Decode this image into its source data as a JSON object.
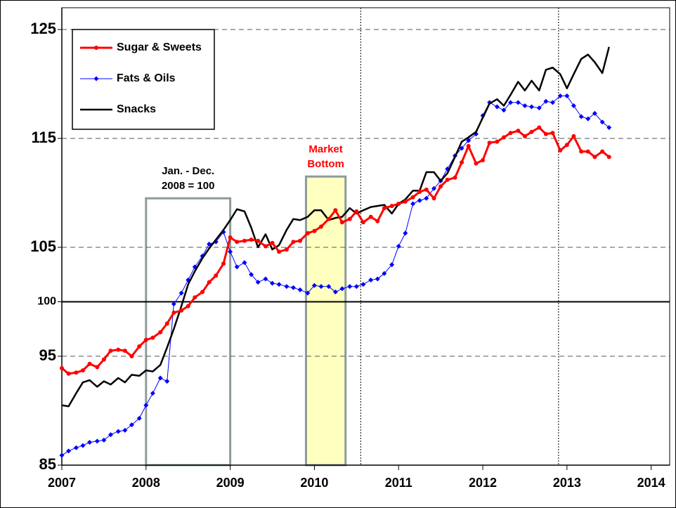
{
  "chart_data": {
    "type": "line",
    "x": [
      2007,
      2007.08,
      2007.17,
      2007.25,
      2007.33,
      2007.42,
      2007.5,
      2007.58,
      2007.67,
      2007.75,
      2007.83,
      2007.92,
      2008,
      2008.08,
      2008.17,
      2008.25,
      2008.33,
      2008.42,
      2008.5,
      2008.58,
      2008.67,
      2008.75,
      2008.83,
      2008.92,
      2009,
      2009.08,
      2009.17,
      2009.25,
      2009.33,
      2009.42,
      2009.5,
      2009.58,
      2009.67,
      2009.75,
      2009.83,
      2009.92,
      2010,
      2010.08,
      2010.17,
      2010.25,
      2010.33,
      2010.42,
      2010.5,
      2010.58,
      2010.67,
      2010.75,
      2010.83,
      2010.92,
      2011,
      2011.08,
      2011.17,
      2011.25,
      2011.33,
      2011.42,
      2011.5,
      2011.58,
      2011.67,
      2011.75,
      2011.83,
      2011.92,
      2012,
      2012.08,
      2012.17,
      2012.25,
      2012.33,
      2012.42,
      2012.5,
      2012.58,
      2012.67,
      2012.75,
      2012.83,
      2012.92,
      2013,
      2013.08,
      2013.17,
      2013.25,
      2013.33,
      2013.42,
      2013.5
    ],
    "series": [
      {
        "name": "Sugar & Sweets",
        "color": "#ff0000",
        "marker": "circle",
        "values": [
          93.9,
          93.4,
          93.5,
          93.7,
          94.3,
          94.0,
          94.7,
          95.5,
          95.6,
          95.5,
          95.0,
          95.9,
          96.5,
          96.7,
          97.2,
          98.0,
          99.0,
          99.2,
          99.6,
          100.4,
          100.9,
          101.8,
          102.4,
          103.5,
          105.9,
          105.5,
          105.6,
          105.7,
          105.6,
          105.1,
          105.4,
          104.6,
          104.8,
          105.5,
          105.6,
          106.3,
          106.5,
          106.9,
          107.6,
          108.4,
          107.3,
          107.6,
          108.3,
          107.3,
          107.8,
          107.4,
          108.6,
          108.8,
          109.0,
          109.2,
          109.6,
          110.1,
          110.3,
          109.5,
          110.6,
          111.2,
          111.4,
          112.8,
          114.3,
          112.7,
          113.0,
          114.6,
          114.7,
          115.1,
          115.5,
          115.7,
          115.2,
          115.6,
          116.0,
          115.4,
          115.5,
          113.9,
          114.4,
          115.2,
          113.8,
          113.8,
          113.3,
          113.8,
          113.3
        ]
      },
      {
        "name": "Fats & Oils",
        "color": "#0000ff",
        "marker": "diamond",
        "values": [
          85.9,
          86.3,
          86.6,
          86.8,
          87.1,
          87.2,
          87.3,
          87.8,
          88.1,
          88.2,
          88.7,
          89.3,
          90.5,
          91.6,
          93.0,
          92.7,
          99.8,
          100.8,
          102.0,
          103.2,
          104.2,
          105.3,
          105.5,
          106.4,
          104.6,
          103.2,
          103.6,
          102.5,
          101.8,
          102.1,
          101.7,
          101.6,
          101.4,
          101.3,
          101.1,
          100.8,
          101.5,
          101.4,
          101.4,
          100.9,
          101.2,
          101.4,
          101.4,
          101.6,
          102.0,
          102.1,
          102.6,
          103.4,
          105.1,
          106.3,
          109.0,
          109.3,
          109.5,
          110.4,
          111.1,
          112.2,
          113.4,
          114.1,
          114.8,
          115.4,
          117.1,
          118.3,
          117.9,
          117.6,
          118.3,
          118.3,
          118.0,
          117.9,
          117.8,
          118.4,
          118.3,
          118.9,
          118.9,
          118.0,
          117.0,
          116.8,
          117.3,
          116.5,
          116.0
        ]
      },
      {
        "name": "Snacks",
        "color": "#000000",
        "marker": "none",
        "values": [
          90.5,
          90.4,
          91.6,
          92.6,
          92.8,
          92.2,
          92.7,
          92.4,
          93.0,
          92.6,
          93.3,
          93.2,
          93.7,
          93.6,
          94.2,
          95.8,
          97.5,
          99.6,
          101.6,
          102.8,
          104.0,
          104.9,
          105.7,
          106.6,
          107.5,
          108.5,
          108.3,
          106.8,
          105.0,
          106.2,
          104.8,
          105.2,
          106.6,
          107.6,
          107.5,
          107.8,
          108.4,
          108.4,
          107.5,
          107.7,
          107.8,
          108.6,
          108.1,
          108.4,
          108.7,
          108.8,
          108.9,
          108.1,
          109.0,
          109.4,
          110.2,
          110.2,
          111.9,
          111.9,
          111.1,
          111.8,
          113.3,
          114.7,
          115.1,
          115.6,
          116.9,
          118.2,
          118.6,
          118.0,
          119.0,
          120.2,
          119.4,
          120.3,
          119.4,
          121.3,
          121.5,
          120.9,
          119.6,
          120.9,
          122.3,
          122.7,
          122.0,
          121.0,
          123.4
        ]
      }
    ],
    "xlim": [
      2007,
      2014.22
    ],
    "xticks": [
      2007,
      2008,
      2009,
      2010,
      2011,
      2012,
      2013,
      2014
    ],
    "ylim": [
      85,
      127
    ],
    "yticks": [
      85,
      95,
      100,
      105,
      115,
      125
    ],
    "grid": true,
    "reference_line": 100,
    "legend": "upper left",
    "vlines": [
      2010.55,
      2012.9
    ],
    "annotations": [
      {
        "lines": [
          "Jan. - Dec.",
          "2008 = 100"
        ],
        "color": "#000000",
        "box_color": "#8c9c9c",
        "fill": "none",
        "x": [
          2008,
          2009
        ],
        "y": [
          85,
          109.5
        ]
      },
      {
        "lines": [
          "Market",
          "Bottom"
        ],
        "color": "#ff0000",
        "box_color": "#8c9c9c",
        "fill": "#ffffc0",
        "x": [
          2009.9,
          2010.37
        ],
        "y": [
          85,
          111.5
        ]
      }
    ]
  }
}
